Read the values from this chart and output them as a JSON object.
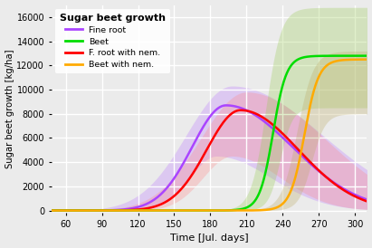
{
  "title": "Sugar beet growth",
  "xlabel": "Time [Jul. days]",
  "ylabel": "Sugar beet growth [kg/ha]",
  "xlim": [
    48,
    310
  ],
  "ylim": [
    -200,
    17000
  ],
  "xticks": [
    60,
    90,
    120,
    150,
    180,
    210,
    240,
    270,
    300
  ],
  "yticks": [
    0,
    2000,
    4000,
    6000,
    8000,
    10000,
    12000,
    14000,
    16000
  ],
  "bg_color": "#EBEBEB",
  "grid_color": "#FFFFFF",
  "curves": {
    "fine_root": {
      "label": "Fine root",
      "color": "#AA44FF",
      "band_color": "#BB77FF",
      "band_alpha": 0.3
    },
    "beet": {
      "label": "Beet",
      "color": "#00DD00",
      "band_color": "#99CC55",
      "band_alpha": 0.3
    },
    "fine_root_nem": {
      "label": "F. root with nem.",
      "color": "#FF0000",
      "band_color": "#FF8888",
      "band_alpha": 0.3
    },
    "beet_nem": {
      "label": "Beet with nem.",
      "color": "#FFAA00",
      "band_color": "#BBAA66",
      "band_alpha": 0.3
    }
  }
}
